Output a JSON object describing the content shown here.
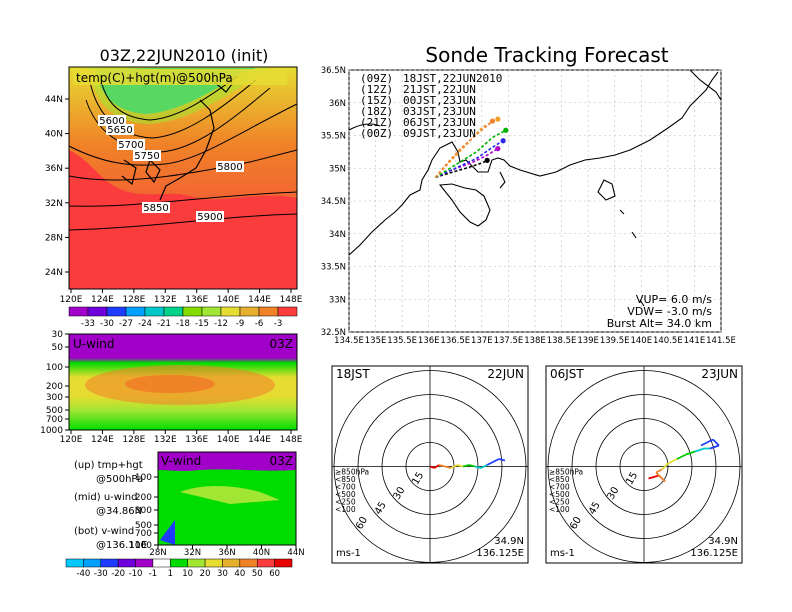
{
  "chart_data": [
    {
      "type": "heatmap",
      "title": "03Z,22JUN2010 (init)",
      "subtitle": "temp(C)+hgt(m)@500hPa",
      "x_ticks": [
        "120E",
        "124E",
        "128E",
        "132E",
        "136E",
        "140E",
        "144E",
        "148E"
      ],
      "y_ticks": [
        "44N",
        "40N",
        "36N",
        "32N",
        "28N",
        "24N"
      ],
      "contour_labels": [
        "5600",
        "5650",
        "5700",
        "5750",
        "5800",
        "5850",
        "5900"
      ],
      "colorbar_ticks": [
        "-33",
        "-30",
        "-27",
        "-24",
        "-21",
        "-18",
        "-15",
        "-12",
        "-9",
        "-6",
        "-3"
      ],
      "colorbar_colors": [
        "#a000c8",
        "#6e00dc",
        "#1e3cff",
        "#00a0ff",
        "#00c8c8",
        "#00d28c",
        "#82dc00",
        "#a0e632",
        "#e6dc32",
        "#e6af2d",
        "#f08228",
        "#fa3c3c"
      ]
    },
    {
      "type": "heatmap",
      "title": "U-wind",
      "time_label": "03Z",
      "x_ticks": [
        "120E",
        "124E",
        "128E",
        "132E",
        "136E",
        "140E",
        "144E",
        "148E"
      ],
      "y_ticks": [
        "30",
        "50",
        "100",
        "200",
        "300",
        "500",
        "700",
        "1000"
      ]
    },
    {
      "type": "heatmap",
      "title": "V-wind",
      "time_label": "03Z",
      "x_ticks": [
        "28N",
        "32N",
        "36N",
        "40N",
        "44N"
      ],
      "y_ticks": [
        "100",
        "200",
        "300",
        "500",
        "700",
        "1000"
      ],
      "colorbar_ticks": [
        "-40",
        "-30",
        "-20",
        "-10",
        "-1",
        "1",
        "10",
        "20",
        "30",
        "40",
        "50",
        "60"
      ],
      "colorbar_colors": [
        "#00c8ff",
        "#00a0ff",
        "#1e3cff",
        "#6e00dc",
        "#a000c8",
        "#ffffff",
        "#00dc00",
        "#a0e632",
        "#e6dc32",
        "#e6af2d",
        "#f08228",
        "#fa3c3c",
        "#e60000"
      ]
    },
    {
      "type": "line",
      "title": "Sonde Tracking Forecast",
      "x_ticks": [
        "134.5E",
        "135E",
        "135.5E",
        "136E",
        "136.5E",
        "137E",
        "137.5E",
        "138E",
        "138.5E",
        "139E",
        "139.5E",
        "140E",
        "140.5E",
        "141E",
        "141.5E"
      ],
      "y_ticks": [
        "36.5N",
        "36N",
        "35.5N",
        "35N",
        "34.5N",
        "34N",
        "33.5N",
        "33N",
        "32.5N"
      ],
      "xlim": [
        134.5,
        141.5
      ],
      "ylim": [
        32.5,
        36.5
      ],
      "legend": [
        {
          "code": "(09Z)",
          "time": "18JST,22JUN2010",
          "color": "#000000"
        },
        {
          "code": "(12Z)",
          "time": "21JST,22JUN",
          "color": "#b400c8"
        },
        {
          "code": "(15Z)",
          "time": "00JST,23JUN",
          "color": "#2828e6"
        },
        {
          "code": "(18Z)",
          "time": "03JST,23JUN",
          "color": "#00b400"
        },
        {
          "code": "(21Z)",
          "time": "06JST,23JUN",
          "color": "#f0a028"
        },
        {
          "code": "(00Z)",
          "time": "09JST,23JUN",
          "color": "#f08232"
        }
      ],
      "series": [
        {
          "name": "(09Z)",
          "color": "#000000",
          "x": [
            136.125,
            136.4,
            136.7,
            137.0,
            137.1
          ],
          "y": [
            34.86,
            34.93,
            35.0,
            35.08,
            35.12
          ]
        },
        {
          "name": "(12Z)",
          "color": "#b400c8",
          "x": [
            136.125,
            136.45,
            136.8,
            137.1,
            137.3
          ],
          "y": [
            34.86,
            34.98,
            35.08,
            35.2,
            35.3
          ]
        },
        {
          "name": "(15Z)",
          "color": "#2828e6",
          "x": [
            136.125,
            136.5,
            136.9,
            137.2,
            137.4
          ],
          "y": [
            34.86,
            35.0,
            35.15,
            35.32,
            35.42
          ]
        },
        {
          "name": "(18Z)",
          "color": "#00b400",
          "x": [
            136.125,
            136.5,
            136.9,
            137.2,
            137.45
          ],
          "y": [
            34.86,
            35.05,
            35.25,
            35.47,
            35.58
          ]
        },
        {
          "name": "(21Z)",
          "color": "#f0a028",
          "x": [
            136.125,
            136.4,
            136.7,
            137.0,
            137.3
          ],
          "y": [
            34.86,
            35.1,
            35.35,
            35.62,
            35.75
          ]
        },
        {
          "name": "(00Z)",
          "color": "#f08232",
          "x": [
            136.125,
            136.35,
            136.6,
            136.95,
            137.2
          ],
          "y": [
            34.86,
            35.08,
            35.3,
            35.55,
            35.72
          ]
        }
      ],
      "launch_point": {
        "lat": "34.9N",
        "lon": "136.125E"
      },
      "params": {
        "vup": "VUP= 6.0 m/s",
        "vdw": "VDW= -3.0 m/s",
        "burst": "Burst Alt= 34.0 km"
      }
    },
    {
      "type": "scatter",
      "title": "18JST",
      "date": "22JUN",
      "unit_label": "ms-1",
      "ring_labels": [
        "15",
        "30",
        "45",
        "60"
      ],
      "legend": [
        {
          "label": "≥850hPa",
          "color": "#e60000"
        },
        {
          "label": "<850",
          "color": "#f08228"
        },
        {
          "label": "<700",
          "color": "#e6dc32"
        },
        {
          "label": "<500",
          "color": "#00c800"
        },
        {
          "label": "<250",
          "color": "#00c8c8"
        },
        {
          "label": "<100",
          "color": "#1e3cff"
        }
      ],
      "hodograph": {
        "u": [
          0,
          3,
          6,
          10,
          14,
          18,
          22,
          26,
          30,
          34,
          38,
          42,
          46,
          50
        ],
        "v": [
          0,
          -1,
          1,
          0,
          -1,
          1,
          0,
          1,
          0,
          -1,
          1,
          3,
          5,
          4
        ]
      },
      "location": {
        "lat": "34.9N",
        "lon": "136.125E"
      }
    },
    {
      "type": "scatter",
      "title": "06JST",
      "date": "23JUN",
      "unit_label": "ms-1",
      "ring_labels": [
        "15",
        "30",
        "45",
        "60"
      ],
      "legend": [
        {
          "label": "≥850hPa",
          "color": "#e60000"
        },
        {
          "label": "<850",
          "color": "#f08228"
        },
        {
          "label": "<700",
          "color": "#e6dc32"
        },
        {
          "label": "<500",
          "color": "#00c800"
        },
        {
          "label": "<250",
          "color": "#00c8c8"
        },
        {
          "label": "<100",
          "color": "#1e3cff"
        }
      ],
      "hodograph": {
        "u": [
          3,
          10,
          14,
          8,
          12,
          16,
          22,
          28,
          34,
          40,
          44,
          50,
          46,
          42,
          38
        ],
        "v": [
          -8,
          -6,
          -10,
          -4,
          -2,
          2,
          5,
          8,
          10,
          12,
          12,
          14,
          18,
          16,
          14
        ]
      },
      "location": {
        "lat": "34.9N",
        "lon": "136.125E"
      }
    }
  ],
  "notes": {
    "up": "(up) tmp+hgt",
    "up2": "@500hPa",
    "mid": "(mid) u-wind",
    "mid2": "@34.86N",
    "bot": "(bot) v-wind",
    "bot2": "@136.11E"
  }
}
